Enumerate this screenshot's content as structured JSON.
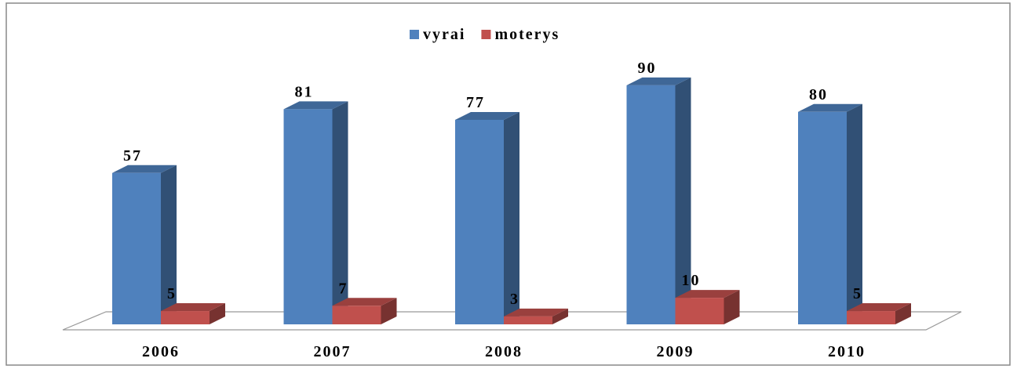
{
  "chart_data": {
    "type": "bar3d",
    "categories": [
      "2006",
      "2007",
      "2008",
      "2009",
      "2010"
    ],
    "series": [
      {
        "name": "vyrai",
        "color": "#4f81bd",
        "values": [
          57,
          81,
          77,
          90,
          80
        ]
      },
      {
        "name": "moterys",
        "color": "#c0504d",
        "values": [
          5,
          7,
          3,
          10,
          5
        ]
      }
    ],
    "legend": "top"
  }
}
